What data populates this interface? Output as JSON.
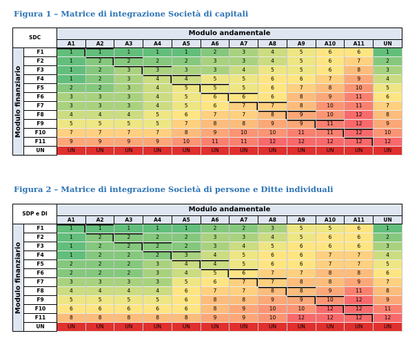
{
  "figures": [
    {
      "title": "Figura 1 – Matrice di integrazione Società di capitali",
      "corner_label": "SDC",
      "header": "Modulo andamentale",
      "row_axis_label": "Modulo finanziario",
      "columns": [
        "A1",
        "A2",
        "A3",
        "A4",
        "A5",
        "A6",
        "A7",
        "A8",
        "A9",
        "A10",
        "A11",
        "UN"
      ],
      "rows": [
        {
          "label": "F1",
          "values": [
            "1",
            "1",
            "1",
            "1",
            "1",
            "2",
            "3",
            "4",
            "5",
            "6",
            "6",
            "1"
          ]
        },
        {
          "label": "F2",
          "values": [
            "1",
            "2",
            "2",
            "2",
            "2",
            "3",
            "3",
            "4",
            "5",
            "6",
            "7",
            "2"
          ]
        },
        {
          "label": "F3",
          "values": [
            "1",
            "2",
            "3",
            "3",
            "3",
            "3",
            "4",
            "5",
            "5",
            "6",
            "8",
            "3"
          ]
        },
        {
          "label": "F4",
          "values": [
            "1",
            "2",
            "3",
            "4",
            "4",
            "5",
            "5",
            "6",
            "6",
            "7",
            "9",
            "4"
          ]
        },
        {
          "label": "F5",
          "values": [
            "2",
            "2",
            "3",
            "4",
            "5",
            "5",
            "5",
            "6",
            "7",
            "8",
            "10",
            "5"
          ]
        },
        {
          "label": "F6",
          "values": [
            "3",
            "3",
            "3",
            "4",
            "5",
            "6",
            "6",
            "6",
            "8",
            "9",
            "11",
            "6"
          ]
        },
        {
          "label": "F7",
          "values": [
            "3",
            "3",
            "3",
            "4",
            "5",
            "6",
            "7",
            "7",
            "8",
            "10",
            "11",
            "7"
          ]
        },
        {
          "label": "F8",
          "values": [
            "4",
            "4",
            "4",
            "5",
            "6",
            "7",
            "7",
            "8",
            "9",
            "10",
            "12",
            "8"
          ]
        },
        {
          "label": "F9",
          "values": [
            "5",
            "5",
            "5",
            "5",
            "7",
            "8",
            "8",
            "9",
            "9",
            "11",
            "12",
            "9"
          ]
        },
        {
          "label": "F10",
          "values": [
            "7",
            "7",
            "7",
            "7",
            "8",
            "9",
            "10",
            "10",
            "11",
            "11",
            "12",
            "10"
          ]
        },
        {
          "label": "F11",
          "values": [
            "9",
            "9",
            "9",
            "9",
            "10",
            "11",
            "11",
            "12",
            "12",
            "12",
            "12",
            "12"
          ]
        },
        {
          "label": "UN",
          "values": [
            "UN",
            "UN",
            "UN",
            "UN",
            "UN",
            "UN",
            "UN",
            "UN",
            "UN",
            "UN",
            "UN",
            "UN"
          ]
        }
      ]
    },
    {
      "title": "Figura 2 – Matrice di integrazione Società di persone e Ditte individuali",
      "corner_label": "SDP e DI",
      "header": "Modulo andamentale",
      "row_axis_label": "Modulo finanziario",
      "columns": [
        "A1",
        "A2",
        "A3",
        "A4",
        "A5",
        "A6",
        "A7",
        "A8",
        "A9",
        "A10",
        "A11",
        "UN"
      ],
      "rows": [
        {
          "label": "F1",
          "values": [
            "1",
            "1",
            "1",
            "1",
            "1",
            "2",
            "2",
            "3",
            "5",
            "5",
            "6",
            "1"
          ]
        },
        {
          "label": "F2",
          "values": [
            "1",
            "2",
            "2",
            "2",
            "2",
            "3",
            "3",
            "4",
            "5",
            "6",
            "6",
            "2"
          ]
        },
        {
          "label": "F3",
          "values": [
            "1",
            "2",
            "2",
            "2",
            "2",
            "3",
            "4",
            "5",
            "6",
            "6",
            "6",
            "3"
          ]
        },
        {
          "label": "F4",
          "values": [
            "1",
            "2",
            "2",
            "2",
            "3",
            "4",
            "5",
            "6",
            "6",
            "7",
            "7",
            "4"
          ]
        },
        {
          "label": "F5",
          "values": [
            "2",
            "2",
            "2",
            "3",
            "4",
            "4",
            "5",
            "6",
            "6",
            "7",
            "7",
            "5"
          ]
        },
        {
          "label": "F6",
          "values": [
            "2",
            "2",
            "2",
            "3",
            "4",
            "5",
            "6",
            "7",
            "7",
            "8",
            "8",
            "6"
          ]
        },
        {
          "label": "F7",
          "values": [
            "3",
            "3",
            "3",
            "3",
            "5",
            "6",
            "7",
            "7",
            "8",
            "8",
            "9",
            "7"
          ]
        },
        {
          "label": "F8",
          "values": [
            "4",
            "4",
            "4",
            "4",
            "6",
            "7",
            "7",
            "8",
            "8",
            "9",
            "11",
            "8"
          ]
        },
        {
          "label": "F9",
          "values": [
            "5",
            "5",
            "5",
            "5",
            "6",
            "8",
            "8",
            "9",
            "9",
            "10",
            "12",
            "9"
          ]
        },
        {
          "label": "F10",
          "values": [
            "6",
            "6",
            "6",
            "6",
            "6",
            "8",
            "9",
            "10",
            "10",
            "12",
            "12",
            "11"
          ]
        },
        {
          "label": "F11",
          "values": [
            "8",
            "8",
            "8",
            "8",
            "8",
            "9",
            "9",
            "10",
            "12",
            "12",
            "12",
            "12"
          ]
        },
        {
          "label": "UN",
          "values": [
            "UN",
            "UN",
            "UN",
            "UN",
            "UN",
            "UN",
            "UN",
            "UN",
            "UN",
            "UN",
            "UN",
            "UN"
          ]
        }
      ]
    }
  ],
  "scale_colors": {
    "1": "#63be7b",
    "2": "#85c87d",
    "3": "#a9d27f",
    "4": "#cbdc81",
    "5": "#eee683",
    "6": "#fee582",
    "7": "#fed07f",
    "8": "#fcbc7b",
    "9": "#fba777",
    "10": "#fa9473",
    "11": "#f9806f",
    "12": "#f8696b",
    "UN": "#e0302e"
  }
}
